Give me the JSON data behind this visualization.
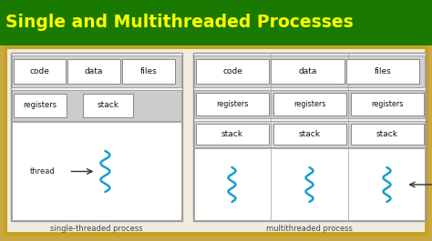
{
  "title": "Single and Multithreaded Processes",
  "title_color": "#FFFF00",
  "title_fontsize": 13.5,
  "bg_green": "#1a7a00",
  "bg_tan": "#c8a840",
  "inner_bg": "#f0ece0",
  "box_fill": "#ffffff",
  "box_shade": "#cccccc",
  "thread_color": "#1a9ecc",
  "single_label": "single-threaded process",
  "multi_label": "multithreaded process",
  "thread_label": "thread"
}
